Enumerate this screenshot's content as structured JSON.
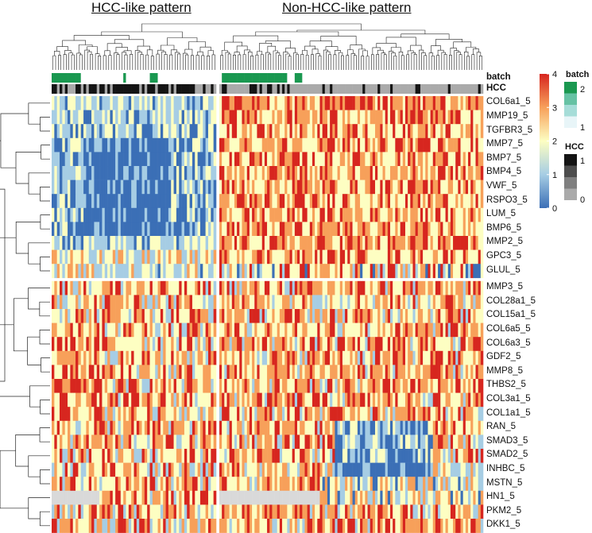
{
  "chart_data": {
    "type": "heatmap",
    "headers": {
      "left": "HCC-like pattern",
      "right": "Non-HCC-like pattern"
    },
    "annotation_rows": [
      "batch",
      "HCC"
    ],
    "row_groups": [
      [
        "COL6a1_5",
        "MMP19_5",
        "TGFBR3_5",
        "MMP7_5",
        "BMP7_5",
        "BMP4_5",
        "VWF_5",
        "RSPO3_5",
        "LUM_5",
        "BMP6_5",
        "MMP2_5",
        "GPC3_5",
        "GLUL_5"
      ],
      [
        "MMP3_5",
        "COL28a1_5",
        "COL15a1_5",
        "COL6a5_5",
        "COL6a3_5",
        "GDF2_5",
        "MMP8_5",
        "THBS2_5",
        "COL3a1_5",
        "COL1a1_5",
        "RAN_5",
        "SMAD3_5",
        "SMAD2_5",
        "INHBC_5",
        "MSTN_5",
        "HN1_5",
        "PKM2_5",
        "DKK1_5"
      ]
    ],
    "column_groups": {
      "HCC-like": 62,
      "Non-HCC-like": 105
    },
    "color_scale": {
      "min": 0,
      "max": 4,
      "ticks": [
        "0",
        "1",
        "2",
        "3",
        "4"
      ],
      "colors": [
        "#3b6fb6",
        "#a6cde4",
        "#fdfec2",
        "#f7a05a",
        "#d7261f"
      ]
    },
    "missing_color": "#d9d9d9",
    "legend_batch": {
      "title": "batch",
      "levels": [
        "2",
        "1"
      ],
      "colors": [
        "#1a9850",
        "#66c2a4",
        "#a6ddd8",
        "#e8f5f8"
      ]
    },
    "legend_hcc": {
      "title": "HCC",
      "levels": [
        "1",
        "0"
      ],
      "colors": [
        "#141414",
        "#4d4d4d",
        "#7f7f7f",
        "#aaaaaa"
      ]
    }
  }
}
